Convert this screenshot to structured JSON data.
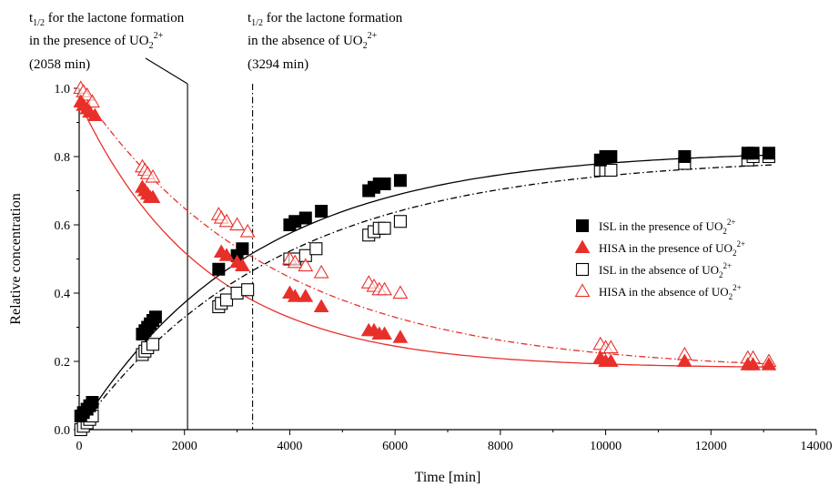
{
  "chart_data": {
    "type": "scatter",
    "xlabel": "Time [min]",
    "ylabel": "Relative concentration",
    "xlim": [
      0,
      14000
    ],
    "ylim": [
      0,
      1.0
    ],
    "xticks": [
      "0",
      "2000",
      "4000",
      "6000",
      "8000",
      "10000",
      "12000",
      "14000"
    ],
    "yticks": [
      "0.0",
      "0.2",
      "0.4",
      "0.6",
      "0.8",
      "1.0"
    ],
    "grid": false,
    "legend_placement": "center-right",
    "annotations": [
      {
        "id": "present",
        "line1": "for the lactone formation",
        "line2_pre": "in the presence of UO",
        "line3": "(2058 min)",
        "x_value": 2058,
        "line_style": "solid"
      },
      {
        "id": "absent",
        "line1": "for the lactone formation",
        "line2_pre": "in the absence of UO",
        "line3": "(3294 min)",
        "x_value": 3294,
        "line_style": "dash-dot"
      }
    ],
    "annotation_symbol": {
      "t": "t",
      "sub": "1/2"
    },
    "species_sub": "2",
    "species_sup": "2+",
    "series": [
      {
        "name_pre": "ISL in the presence of UO",
        "marker": "square-filled",
        "color": "#000000",
        "fit_style": "solid",
        "fit": {
          "type": "rise",
          "a": 0.82,
          "k": 0.000302
        },
        "points": [
          [
            30,
            0.04
          ],
          [
            80,
            0.05
          ],
          [
            150,
            0.06
          ],
          [
            200,
            0.07
          ],
          [
            250,
            0.08
          ],
          [
            1200,
            0.28
          ],
          [
            1250,
            0.29
          ],
          [
            1300,
            0.3
          ],
          [
            1350,
            0.31
          ],
          [
            1400,
            0.32
          ],
          [
            1450,
            0.33
          ],
          [
            2650,
            0.47
          ],
          [
            3000,
            0.51
          ],
          [
            3100,
            0.53
          ],
          [
            4000,
            0.6
          ],
          [
            4100,
            0.61
          ],
          [
            4300,
            0.62
          ],
          [
            4600,
            0.64
          ],
          [
            5500,
            0.7
          ],
          [
            5600,
            0.71
          ],
          [
            5700,
            0.72
          ],
          [
            5800,
            0.72
          ],
          [
            6100,
            0.73
          ],
          [
            9900,
            0.79
          ],
          [
            10000,
            0.8
          ],
          [
            10100,
            0.8
          ],
          [
            11500,
            0.8
          ],
          [
            12700,
            0.81
          ],
          [
            12800,
            0.81
          ],
          [
            13100,
            0.81
          ]
        ]
      },
      {
        "name_pre": "HISA in the presence of UO",
        "marker": "triangle-filled",
        "color": "#e8302b",
        "fit_style": "solid",
        "fit": {
          "type": "decay",
          "a": 0.96,
          "b": 0.18,
          "k": 0.000415
        },
        "points": [
          [
            30,
            0.96
          ],
          [
            80,
            0.95
          ],
          [
            150,
            0.94
          ],
          [
            200,
            0.93
          ],
          [
            300,
            0.92
          ],
          [
            1200,
            0.71
          ],
          [
            1250,
            0.7
          ],
          [
            1300,
            0.69
          ],
          [
            1350,
            0.68
          ],
          [
            1400,
            0.68
          ],
          [
            2700,
            0.52
          ],
          [
            2800,
            0.51
          ],
          [
            3000,
            0.49
          ],
          [
            3100,
            0.48
          ],
          [
            4000,
            0.4
          ],
          [
            4100,
            0.39
          ],
          [
            4300,
            0.39
          ],
          [
            4600,
            0.36
          ],
          [
            5500,
            0.29
          ],
          [
            5600,
            0.29
          ],
          [
            5700,
            0.28
          ],
          [
            5800,
            0.28
          ],
          [
            6100,
            0.27
          ],
          [
            9900,
            0.21
          ],
          [
            10000,
            0.2
          ],
          [
            10100,
            0.2
          ],
          [
            11500,
            0.2
          ],
          [
            12700,
            0.19
          ],
          [
            12800,
            0.19
          ],
          [
            13100,
            0.19
          ]
        ]
      },
      {
        "name_pre": "ISL in the absence of UO",
        "marker": "square-open",
        "color": "#000000",
        "fit_style": "dash-dot",
        "fit": {
          "type": "rise",
          "a": 0.8,
          "k": 0.000265
        },
        "points": [
          [
            30,
            0.0
          ],
          [
            80,
            0.01
          ],
          [
            150,
            0.02
          ],
          [
            200,
            0.03
          ],
          [
            250,
            0.04
          ],
          [
            1200,
            0.22
          ],
          [
            1250,
            0.23
          ],
          [
            1300,
            0.24
          ],
          [
            1400,
            0.25
          ],
          [
            2650,
            0.36
          ],
          [
            2700,
            0.37
          ],
          [
            2800,
            0.38
          ],
          [
            3000,
            0.4
          ],
          [
            3200,
            0.41
          ],
          [
            4000,
            0.5
          ],
          [
            4100,
            0.5
          ],
          [
            4300,
            0.51
          ],
          [
            4500,
            0.53
          ],
          [
            5500,
            0.57
          ],
          [
            5600,
            0.58
          ],
          [
            5700,
            0.59
          ],
          [
            5800,
            0.59
          ],
          [
            6100,
            0.61
          ],
          [
            9900,
            0.76
          ],
          [
            10000,
            0.76
          ],
          [
            10100,
            0.76
          ],
          [
            11500,
            0.78
          ],
          [
            12700,
            0.79
          ],
          [
            12800,
            0.8
          ],
          [
            13100,
            0.8
          ]
        ]
      },
      {
        "name_pre": "HISA in the absence of UO",
        "marker": "triangle-open",
        "color": "#e8302b",
        "fit_style": "dash-dot",
        "fit": {
          "type": "decay",
          "a": 1.0,
          "b": 0.17,
          "k": 0.000275
        },
        "points": [
          [
            30,
            1.0
          ],
          [
            80,
            0.99
          ],
          [
            150,
            0.98
          ],
          [
            250,
            0.96
          ],
          [
            1200,
            0.77
          ],
          [
            1250,
            0.76
          ],
          [
            1300,
            0.75
          ],
          [
            1400,
            0.74
          ],
          [
            2650,
            0.63
          ],
          [
            2700,
            0.62
          ],
          [
            2800,
            0.61
          ],
          [
            3000,
            0.6
          ],
          [
            3200,
            0.58
          ],
          [
            4000,
            0.5
          ],
          [
            4100,
            0.49
          ],
          [
            4300,
            0.48
          ],
          [
            4600,
            0.46
          ],
          [
            5500,
            0.43
          ],
          [
            5600,
            0.42
          ],
          [
            5700,
            0.41
          ],
          [
            5800,
            0.41
          ],
          [
            6100,
            0.4
          ],
          [
            9900,
            0.25
          ],
          [
            10000,
            0.24
          ],
          [
            10100,
            0.24
          ],
          [
            11500,
            0.22
          ],
          [
            12700,
            0.21
          ],
          [
            12800,
            0.21
          ],
          [
            13100,
            0.2
          ]
        ]
      }
    ]
  }
}
